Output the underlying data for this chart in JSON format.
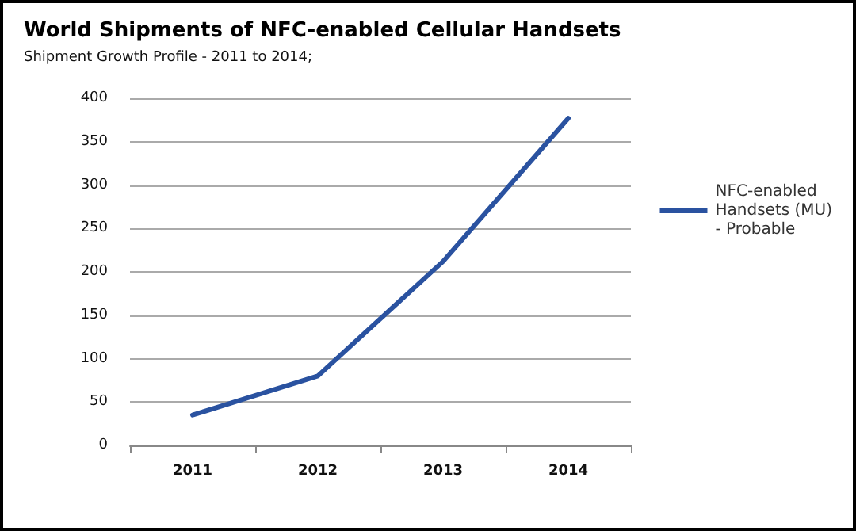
{
  "chart_data": {
    "type": "line",
    "title": "World Shipments of NFC-enabled Cellular Handsets",
    "subtitle": "Shipment Growth Profile - 2011 to 2014;",
    "categories": [
      "2011",
      "2012",
      "2013",
      "2014"
    ],
    "series": [
      {
        "name": "NFC-enabled Handsets (MU) - Probable",
        "color": "#2a52a0",
        "values": [
          35,
          80,
          212,
          377
        ]
      }
    ],
    "ylim": [
      0,
      400
    ],
    "yticks": [
      0,
      50,
      100,
      150,
      200,
      250,
      300,
      350,
      400
    ],
    "grid": "y",
    "legend": "right",
    "marker": "none"
  }
}
